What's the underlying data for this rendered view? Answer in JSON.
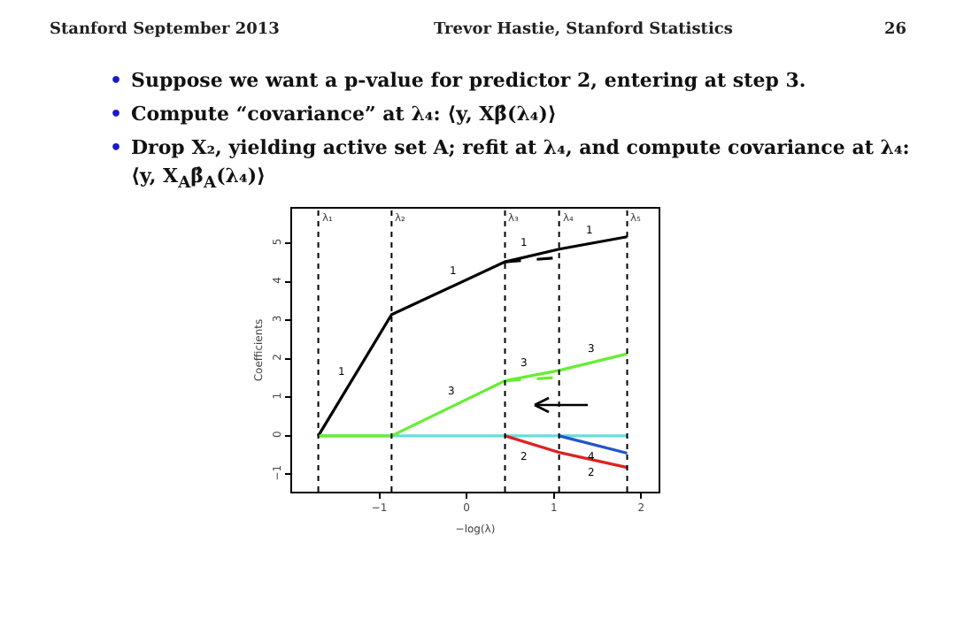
{
  "chart_data": {
    "type": "line",
    "xlabel": "−log(λ)",
    "ylabel": "Coefficients",
    "xlim": [
      -2.0,
      2.2
    ],
    "ylim": [
      -1.45,
      5.9
    ],
    "xticks": [
      {
        "value": -1,
        "label": "−1"
      },
      0,
      1,
      2
    ],
    "yticks": [
      {
        "value": -1,
        "label": "−1"
      },
      0,
      1,
      2,
      3,
      4,
      5
    ],
    "grid": false,
    "marker": "none",
    "series": [
      {
        "color": "#66dddd",
        "x": [
          -1.7,
          1.84
        ],
        "values": [
          0,
          0
        ]
      },
      {
        "color": "#000000",
        "x": [
          -1.7,
          -0.86,
          0.44,
          1.06,
          1.84
        ],
        "values": [
          0,
          3.15,
          4.52,
          4.85,
          5.17
        ]
      },
      {
        "color": "#66ee33",
        "x": [
          -1.7,
          -0.86,
          0.44,
          1.06,
          1.84
        ],
        "values": [
          0,
          0,
          1.43,
          1.7,
          2.13
        ]
      },
      {
        "color": "#dd2222",
        "x": [
          0.44,
          1.06,
          1.84
        ],
        "values": [
          0,
          -0.43,
          -0.82
        ]
      },
      {
        "color": "#2255cc",
        "x": [
          1.06,
          1.84
        ],
        "values": [
          0,
          -0.45
        ]
      },
      {
        "color": "#000000",
        "line_style": "dashed",
        "x": [
          0.44,
          1.06
        ],
        "values": [
          4.52,
          4.63
        ]
      },
      {
        "color": "#66ee33",
        "line_style": "dashed",
        "x": [
          0.44,
          1.06
        ],
        "values": [
          1.43,
          1.52
        ]
      }
    ],
    "ref_lines": [
      {
        "axis": "x",
        "value": -1.7,
        "label": "λ₁",
        "line_style": "dotted"
      },
      {
        "axis": "x",
        "value": -0.86,
        "label": "λ₂",
        "line_style": "dotted"
      },
      {
        "axis": "x",
        "value": 0.44,
        "label": "λ₃",
        "line_style": "dotted"
      },
      {
        "axis": "x",
        "value": 1.06,
        "label": "λ₄",
        "line_style": "dotted"
      },
      {
        "axis": "x",
        "value": 1.84,
        "label": "λ₅",
        "line_style": "dotted"
      }
    ],
    "annotations": [
      "Stanford September 2013",
      "Trevor Hastie, Stanford Statistics",
      "26",
      "• Suppose we want a p-value for predictor 2, entering at step 3.",
      "• Compute “covariance” at λ₄: ⟨y, Xβ̂(λ₄)⟩",
      "• Drop X₂, yielding active set A; refit at λ₄, and compute covariance at λ₄: ⟨y, X$_{A}$β̂$_{A}$(λ₄)⟩",
      {
        "text": "1",
        "x": -1.35,
        "y": 1.31
      },
      {
        "text": "1",
        "x": -0.08,
        "y": 3.97
      },
      {
        "text": "1",
        "x": 0.74,
        "y": 4.68
      },
      {
        "text": "1",
        "x": 1.48,
        "y": 5.02
      },
      {
        "text": "3",
        "x": -0.1,
        "y": 0.84
      },
      {
        "text": "3",
        "x": 0.74,
        "y": 1.56
      },
      {
        "text": "3",
        "x": 1.5,
        "y": 1.94
      },
      {
        "text": "2",
        "x": 0.74,
        "y": -0.21
      },
      {
        "text": "4",
        "x": 1.5,
        "y": -0.25
      },
      {
        "text": "2",
        "x": 1.5,
        "y": -0.65
      }
    ]
  }
}
